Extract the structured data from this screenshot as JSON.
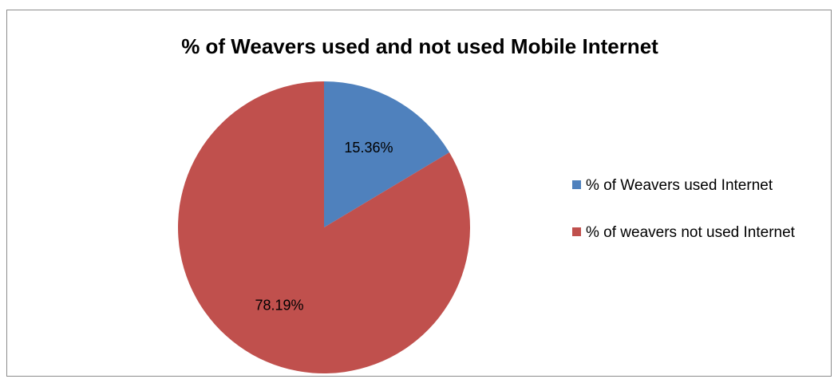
{
  "chart_data": {
    "type": "pie",
    "title": "% of Weavers used and not used Mobile Internet",
    "series": [
      {
        "name": "% of Weavers used Internet",
        "value": 15.36,
        "label": "15.36%",
        "color": "#4f81bd"
      },
      {
        "name": "% of weavers not used Internet",
        "value": 78.19,
        "label": "78.19%",
        "color": "#c0504d"
      }
    ],
    "start_angle_deg": 0,
    "direction": "clockwise",
    "legend_position": "right"
  }
}
